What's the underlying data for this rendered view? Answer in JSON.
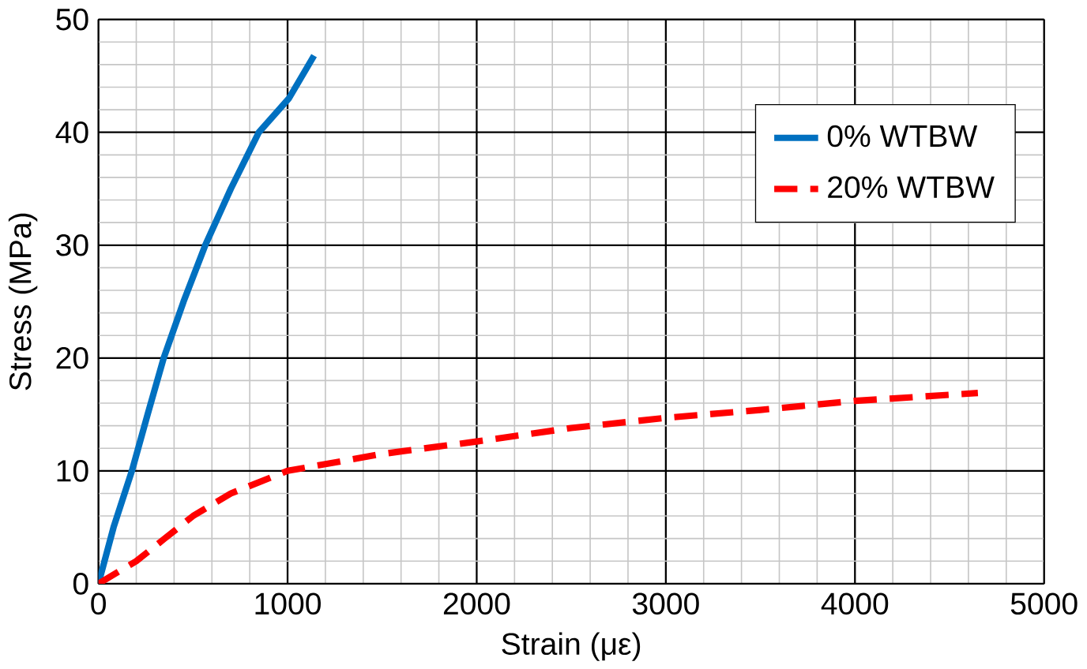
{
  "chart_data": {
    "type": "line",
    "xlabel": "Strain (με)",
    "ylabel": "Stress (MPa)",
    "xlim": [
      0,
      5000
    ],
    "ylim": [
      0,
      50
    ],
    "xticks": [
      0,
      1000,
      2000,
      3000,
      4000,
      5000
    ],
    "yticks": [
      0,
      10,
      20,
      30,
      40,
      50
    ],
    "grid": true,
    "legend": "top right",
    "marker": "none",
    "series": [
      {
        "name": "0% WTBW",
        "color": "#0070c0",
        "line_style": "solid",
        "x": [
          0,
          80,
          177,
          260,
          345,
          450,
          565,
          700,
          848,
          1007,
          1140
        ],
        "values": [
          0,
          5,
          10,
          15,
          20,
          25,
          30,
          35,
          40,
          43,
          46.8
        ]
      },
      {
        "name": "20% WTBW",
        "color": "#ff0000",
        "line_style": "dashed",
        "x": [
          0,
          200,
          350,
          500,
          700,
          1000,
          1500,
          2000,
          2500,
          3000,
          3500,
          4000,
          4650
        ],
        "values": [
          0,
          2,
          4,
          6,
          8,
          10,
          11.5,
          12.6,
          13.8,
          14.7,
          15.4,
          16.2,
          16.9
        ]
      }
    ]
  }
}
